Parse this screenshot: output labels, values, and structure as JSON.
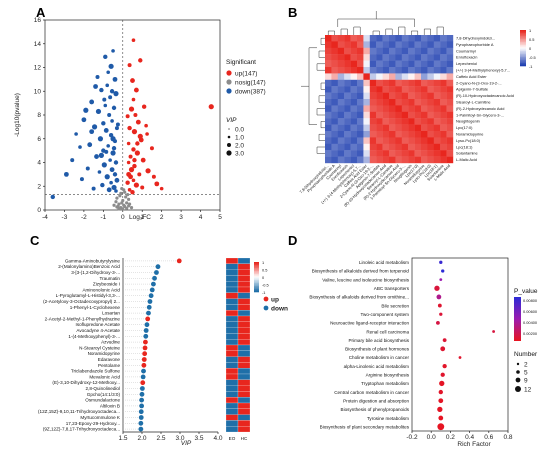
{
  "panels": {
    "a": "A",
    "b": "B",
    "c": "C",
    "d": "D"
  },
  "chart_data": [
    {
      "type": "scatter",
      "panel": "A",
      "xlabel": "Log₂FC",
      "ylabel": "-Log10(pvalue)",
      "xlim": [
        -4,
        5
      ],
      "ylim": [
        0,
        16
      ],
      "xticks": [
        -4,
        -3,
        -2,
        -1,
        0,
        1,
        2,
        3,
        4,
        5
      ],
      "yticks": [
        0,
        2,
        4,
        6,
        8,
        10,
        12,
        14,
        16
      ],
      "legend_title": "Significant",
      "legend": [
        {
          "label": "up(147)",
          "color": "#e8261e"
        },
        {
          "label": "nosig(147)",
          "color": "#8c8c8c"
        },
        {
          "label": "down(387)",
          "color": "#1f5aa8"
        }
      ],
      "size_title": "VIP",
      "size_legend": [
        "0.0",
        "1.0",
        "2.0",
        "3.0"
      ],
      "series": [
        {
          "name": "up(147)",
          "color": "#e8261e",
          "points": [
            [
              0.55,
              14.3
            ],
            [
              0.9,
              12.6
            ],
            [
              4.55,
              8.7
            ],
            [
              0.35,
              12.2
            ],
            [
              0.7,
              10.1
            ],
            [
              0.55,
              9.3
            ],
            [
              1.1,
              8.7
            ],
            [
              0.45,
              8.5
            ],
            [
              0.25,
              7.9
            ],
            [
              0.8,
              7.4
            ],
            [
              1.2,
              7.1
            ],
            [
              0.35,
              6.9
            ],
            [
              0.6,
              6.6
            ],
            [
              1.5,
              5.2
            ],
            [
              0.95,
              5.9
            ],
            [
              0.3,
              5.6
            ],
            [
              0.55,
              5.1
            ],
            [
              0.75,
              4.8
            ],
            [
              0.4,
              4.5
            ],
            [
              1.05,
              4.2
            ],
            [
              0.3,
              4.0
            ],
            [
              0.6,
              3.7
            ],
            [
              1.3,
              3.3
            ],
            [
              0.85,
              3.0
            ],
            [
              0.4,
              2.8
            ],
            [
              0.55,
              2.5
            ],
            [
              0.25,
              2.3
            ],
            [
              0.7,
              2.1
            ],
            [
              1.0,
              1.9
            ],
            [
              1.75,
              2.2
            ],
            [
              0.35,
              1.7
            ],
            [
              0.5,
              1.5
            ],
            [
              0.9,
              6.2
            ],
            [
              0.65,
              8.0
            ],
            [
              0.5,
              10.9
            ],
            [
              1.25,
              6.4
            ],
            [
              0.75,
              5.6
            ],
            [
              0.45,
              3.4
            ],
            [
              1.6,
              2.8
            ],
            [
              0.3,
              3.0
            ],
            [
              2.0,
              1.8
            ],
            [
              0.6,
              4.2
            ]
          ]
        },
        {
          "name": "nosig(147)",
          "color": "#8c8c8c",
          "points": [
            [
              -0.1,
              0.2
            ],
            [
              0.1,
              0.3
            ],
            [
              -0.2,
              0.5
            ],
            [
              0.2,
              0.6
            ],
            [
              0.0,
              0.8
            ],
            [
              -0.3,
              1.0
            ],
            [
              0.3,
              0.9
            ],
            [
              -0.15,
              1.2
            ],
            [
              0.15,
              1.1
            ],
            [
              0.05,
              0.4
            ],
            [
              -0.05,
              0.6
            ],
            [
              0.25,
              1.3
            ],
            [
              -0.25,
              0.3
            ],
            [
              0.35,
              0.5
            ],
            [
              -0.35,
              0.7
            ],
            [
              0.1,
              1.5
            ],
            [
              -0.1,
              1.4
            ],
            [
              0.45,
              0.2
            ],
            [
              -0.45,
              0.4
            ],
            [
              0.0,
              0.1
            ],
            [
              0.2,
              0.15
            ],
            [
              -0.2,
              0.1
            ],
            [
              0.05,
              1.7
            ],
            [
              -0.05,
              1.8
            ],
            [
              0.3,
              0.35
            ],
            [
              -0.3,
              0.25
            ]
          ]
        },
        {
          "name": "down(387)",
          "color": "#1f5aa8",
          "points": [
            [
              -0.5,
              13.4
            ],
            [
              -0.9,
              12.9
            ],
            [
              -0.6,
              12.1
            ],
            [
              -1.3,
              11.2
            ],
            [
              -0.4,
              11.0
            ],
            [
              -0.8,
              10.5
            ],
            [
              -1.1,
              10.1
            ],
            [
              -0.35,
              9.8
            ],
            [
              -0.65,
              9.5
            ],
            [
              -1.6,
              9.1
            ],
            [
              -0.9,
              8.8
            ],
            [
              -0.45,
              8.6
            ],
            [
              -1.25,
              8.3
            ],
            [
              -0.7,
              8.0
            ],
            [
              -2.0,
              7.6
            ],
            [
              -0.55,
              7.5
            ],
            [
              -1.0,
              7.3
            ],
            [
              -1.45,
              7.0
            ],
            [
              -0.3,
              6.9
            ],
            [
              -0.85,
              6.7
            ],
            [
              -2.4,
              6.4
            ],
            [
              -0.6,
              6.3
            ],
            [
              -1.15,
              6.0
            ],
            [
              -0.4,
              5.8
            ],
            [
              -1.7,
              5.5
            ],
            [
              -0.75,
              5.4
            ],
            [
              -1.0,
              5.0
            ],
            [
              -0.5,
              4.8
            ],
            [
              -2.6,
              4.2
            ],
            [
              -1.35,
              4.5
            ],
            [
              -0.65,
              4.2
            ],
            [
              -0.35,
              4.0
            ],
            [
              -0.95,
              3.8
            ],
            [
              -1.8,
              3.5
            ],
            [
              -0.55,
              3.4
            ],
            [
              -1.2,
              3.2
            ],
            [
              -0.4,
              3.0
            ],
            [
              -0.8,
              2.8
            ],
            [
              -2.1,
              2.6
            ],
            [
              -0.3,
              2.5
            ],
            [
              -0.6,
              2.3
            ],
            [
              -1.05,
              2.1
            ],
            [
              -0.45,
              1.9
            ],
            [
              -1.5,
              1.8
            ],
            [
              -0.7,
              1.7
            ],
            [
              -0.35,
              1.6
            ],
            [
              -3.6,
              1.1
            ],
            [
              -0.5,
              6.0
            ],
            [
              -0.95,
              9.3
            ],
            [
              -1.4,
              10.4
            ],
            [
              -0.75,
              11.6
            ],
            [
              -0.55,
              10.0
            ],
            [
              -1.9,
              8.4
            ],
            [
              -0.25,
              7.2
            ],
            [
              -1.6,
              6.6
            ],
            [
              -2.2,
              5.3
            ],
            [
              -0.45,
              5.2
            ],
            [
              -1.1,
              4.6
            ],
            [
              -0.85,
              4.9
            ],
            [
              -2.9,
              3.0
            ]
          ]
        }
      ]
    },
    {
      "type": "heatmap",
      "panel": "B",
      "rows": [
        "7,8-Dihydroxyindolizi...",
        "Pyrophaeophorbide A",
        "Coumarinyl",
        "Enrofloxacin",
        "Lepecheniol",
        "(+/-) 3-(4-Methylphenoxy)-5,7...",
        "Caffeic Acid Ester",
        "2-Cyano-N-(3-Oxo-19-2-...",
        "Apigenin-7-Sulfate",
        "(R)-10-Hydroxyoctadecanoic Acid",
        "Stearoyl-L-Carnitine",
        "(R)-2-Hydroxydecanoic Acid",
        "1-Palmitoyl-Sn-Glycero-3-...",
        "Neoglitogenin",
        "Lpc(17:0)",
        "Noramidopyrine",
        "Lyso-Pc(18:0)",
        "Lpc(18:1)",
        "Solantamine",
        "L-Malic Acid"
      ],
      "colorbar": {
        "min": -1,
        "max": 1,
        "ticks": [
          "1",
          "0.5",
          "0",
          "-0.5",
          "-1"
        ],
        "low_color": "#1f3fb0",
        "mid_color": "#ffffff",
        "high_color": "#e8261e"
      },
      "blocks": [
        [
          0,
          5
        ],
        [
          6,
          6
        ],
        [
          7,
          19
        ]
      ]
    },
    {
      "type": "scatter",
      "panel": "C",
      "xlabel": "VIP",
      "xlim": [
        1.5,
        4.0
      ],
      "xticks": [
        "1.5",
        "2.0",
        "2.5",
        "3.0",
        "3.5",
        "4.0"
      ],
      "legend": [
        {
          "label": "up",
          "color": "#e8261e"
        },
        {
          "label": "down",
          "color": "#1f6fa8"
        }
      ],
      "heat_columns": [
        "EO",
        "HC"
      ],
      "colorbar_ticks": [
        "1",
        "0.5",
        "0",
        "-0.5",
        "-1"
      ],
      "categories": [
        "Gamma-Aminobutyrylysine",
        "2-(Malonylamino)Benzoic Acid",
        "3-[3-(1,2-Dihydroxy-3-...",
        "Traumatin",
        "Zizybeoside I",
        "Aminonolonic Acid",
        "L-Pyroglutamyl-L-Histidyl-3,3-...",
        "(2-Acetyloxy-3-Octadecoxypropyl) 2...",
        "1-Phenyl-1-Cyclohexene",
        "Losartan",
        "2-Acetyl-2-Methyl-1-Phenylhydrazine",
        "Isoflupredone Acetate",
        "Avocadyne 4-Acetate",
        "1-(4-Methoxyphenyl)-3-...",
        "Azvudine",
        "N-Stearoyl Cysteine",
        "Noramidopyrine",
        "Edaravone",
        "Pentolame",
        "Triclabendazole Sulfone",
        "Mevalonic Acid",
        "(E)-3,10-Dihydroxy-12-Methoxy...",
        "2,8-Quinolinediol",
        "Gpcho(14:1/3:0)",
        "Osmundalactone",
        "Altiloxin B",
        "(12Z,15Z)-9,10,11-Trihydroxyoctadeca...",
        "Myrtucommulone K",
        "17,23-Epoxy-29-Hydroxy...",
        "(9Z,12Z)-7,8,17-Trihydroxyoctadeca..."
      ],
      "values": [
        2.98,
        2.42,
        2.38,
        2.33,
        2.3,
        2.27,
        2.24,
        2.21,
        2.19,
        2.17,
        2.15,
        2.13,
        2.11,
        2.1,
        2.09,
        2.08,
        2.07,
        2.06,
        2.05,
        2.04,
        2.03,
        2.02,
        2.01,
        2.0,
        1.99,
        1.99,
        1.98,
        1.98,
        1.97,
        1.97
      ],
      "direction": [
        "up",
        "down",
        "down",
        "down",
        "down",
        "down",
        "down",
        "down",
        "down",
        "down",
        "up",
        "down",
        "down",
        "down",
        "up",
        "up",
        "up",
        "up",
        "up",
        "down",
        "down",
        "up",
        "down",
        "down",
        "down",
        "down",
        "down",
        "down",
        "down",
        "down"
      ],
      "heat_EO": [
        1,
        -1,
        -1,
        -1,
        -1,
        -1,
        1,
        -1,
        -1,
        1,
        -1,
        -1,
        -1,
        -1,
        -1,
        1,
        1,
        -1,
        -1,
        1,
        1,
        -1,
        -1,
        -1,
        1,
        -1,
        -1,
        1,
        -1,
        -1
      ],
      "heat_HC": [
        -1,
        1,
        1,
        1,
        1,
        1,
        -1,
        1,
        1,
        -1,
        1,
        1,
        1,
        1,
        1,
        -1,
        -1,
        1,
        1,
        -1,
        -1,
        1,
        1,
        1,
        -1,
        1,
        1,
        -1,
        1,
        1
      ]
    },
    {
      "type": "scatter",
      "panel": "D",
      "xlabel": "Rich Factor",
      "xlim": [
        -0.2,
        0.8
      ],
      "xticks": [
        "-0.2",
        "0.0",
        "0.2",
        "0.4",
        "0.6",
        "0.8"
      ],
      "pvalue_title": "P_value",
      "pvalue_ticks": [
        "0.00800",
        "0.00600",
        "0.00400",
        "0.00200"
      ],
      "number_title": "Number",
      "number_legend": [
        "2",
        "5",
        "9",
        "12"
      ],
      "categories": [
        "Linoleic acid metabolism",
        "Biosynthesis of alkaloids derived from terpenoid",
        "Valine, leucine and isoleucine biosynthesis",
        "ABC transporters",
        "Biosynthesis of alkaloids derived from ornithine...",
        "Bile secretion",
        "Two-component system",
        "Neuroactive ligand-receptor interaction",
        "Renal cell carcinoma",
        "Primary bile acid biosynthesis",
        "Biosynthesis of plant hormones",
        "Choline metabolism in cancer",
        "alpha-Linolenic acid metabolism",
        "Arginine biosynthesis",
        "Tryptophan metabolism",
        "Central carbon metabolism in cancer",
        "Protein digestion and absorption",
        "Biosynthesis of phenylpropanoids",
        "Tyrosine metabolism",
        "Biosynthesis of plant secondary metabolites"
      ],
      "rich_factor": [
        0.1,
        0.12,
        0.1,
        0.06,
        0.08,
        0.09,
        0.1,
        0.07,
        0.65,
        0.14,
        0.12,
        0.3,
        0.14,
        0.12,
        0.11,
        0.1,
        0.1,
        0.09,
        0.1,
        0.1
      ],
      "number": [
        3,
        3,
        2,
        7,
        6,
        4,
        3,
        4,
        2,
        4,
        6,
        2,
        5,
        5,
        7,
        5,
        6,
        7,
        6,
        10
      ],
      "pvalue": [
        0.0075,
        0.008,
        0.004,
        0.0008,
        0.003,
        0.0005,
        0.0007,
        0.001,
        0.0009,
        0.0006,
        0.0005,
        0.0004,
        0.0003,
        0.0004,
        0.0002,
        0.0003,
        0.0002,
        0.0002,
        0.0001,
        0.0001
      ]
    }
  ]
}
